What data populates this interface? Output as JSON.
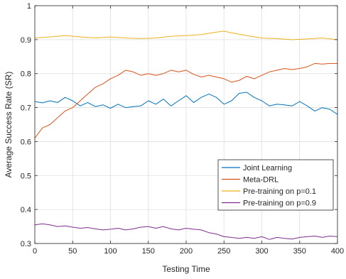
{
  "chart_data": {
    "type": "line",
    "title": "",
    "xlabel": "Testing Time",
    "ylabel": "Average Success Rate (SR)",
    "xlim": [
      0,
      400
    ],
    "ylim": [
      0.3,
      1
    ],
    "x_ticks": [
      "0",
      "50",
      "100",
      "150",
      "200",
      "250",
      "300",
      "350",
      "400"
    ],
    "y_ticks": [
      "0.3",
      "0.4",
      "0.5",
      "0.6",
      "0.7",
      "0.8",
      "0.9",
      "1"
    ],
    "grid": true,
    "legend_position": "lower-right",
    "series": [
      {
        "name": "Joint Learning",
        "color": "#0072BD",
        "x": [
          0,
          10,
          20,
          30,
          40,
          50,
          60,
          70,
          80,
          90,
          100,
          110,
          120,
          130,
          140,
          150,
          160,
          170,
          180,
          190,
          200,
          210,
          220,
          230,
          240,
          250,
          260,
          270,
          280,
          290,
          300,
          310,
          320,
          330,
          340,
          350,
          360,
          370,
          380,
          390,
          400
        ],
        "y": [
          0.718,
          0.714,
          0.72,
          0.715,
          0.73,
          0.72,
          0.705,
          0.715,
          0.703,
          0.708,
          0.698,
          0.71,
          0.7,
          0.703,
          0.705,
          0.72,
          0.71,
          0.725,
          0.705,
          0.72,
          0.735,
          0.715,
          0.73,
          0.74,
          0.73,
          0.71,
          0.72,
          0.742,
          0.745,
          0.73,
          0.72,
          0.705,
          0.71,
          0.708,
          0.705,
          0.718,
          0.705,
          0.69,
          0.7,
          0.695,
          0.68
        ]
      },
      {
        "name": "Meta-DRL",
        "color": "#D95319",
        "x": [
          0,
          10,
          20,
          30,
          40,
          50,
          60,
          70,
          80,
          90,
          100,
          110,
          120,
          130,
          140,
          150,
          160,
          170,
          180,
          190,
          200,
          210,
          220,
          230,
          240,
          250,
          260,
          270,
          280,
          290,
          300,
          310,
          320,
          330,
          340,
          350,
          360,
          370,
          380,
          390,
          400
        ],
        "y": [
          0.61,
          0.64,
          0.65,
          0.67,
          0.69,
          0.7,
          0.72,
          0.74,
          0.76,
          0.77,
          0.785,
          0.795,
          0.81,
          0.805,
          0.795,
          0.8,
          0.795,
          0.8,
          0.81,
          0.805,
          0.81,
          0.798,
          0.79,
          0.795,
          0.79,
          0.785,
          0.775,
          0.78,
          0.792,
          0.785,
          0.795,
          0.805,
          0.81,
          0.815,
          0.812,
          0.815,
          0.82,
          0.83,
          0.828,
          0.83,
          0.83
        ]
      },
      {
        "name": "Pre-training on p=0.1",
        "color": "#EDB120",
        "x": [
          0,
          20,
          40,
          60,
          80,
          100,
          120,
          140,
          160,
          180,
          200,
          220,
          240,
          250,
          260,
          280,
          300,
          320,
          340,
          360,
          380,
          400
        ],
        "y": [
          0.905,
          0.908,
          0.912,
          0.908,
          0.905,
          0.908,
          0.905,
          0.903,
          0.905,
          0.91,
          0.912,
          0.915,
          0.922,
          0.925,
          0.92,
          0.912,
          0.905,
          0.903,
          0.9,
          0.902,
          0.905,
          0.9
        ]
      },
      {
        "name": "Pre-training on p=0.9",
        "color": "#7E2F8E",
        "x": [
          0,
          10,
          20,
          30,
          40,
          50,
          60,
          70,
          80,
          90,
          100,
          110,
          120,
          130,
          140,
          150,
          160,
          170,
          180,
          190,
          200,
          210,
          220,
          230,
          240,
          250,
          260,
          270,
          280,
          290,
          300,
          310,
          320,
          330,
          340,
          350,
          360,
          370,
          380,
          390,
          400
        ],
        "y": [
          0.355,
          0.358,
          0.355,
          0.35,
          0.352,
          0.348,
          0.345,
          0.347,
          0.343,
          0.34,
          0.342,
          0.345,
          0.34,
          0.343,
          0.348,
          0.35,
          0.345,
          0.35,
          0.343,
          0.34,
          0.345,
          0.342,
          0.34,
          0.332,
          0.328,
          0.32,
          0.318,
          0.315,
          0.318,
          0.315,
          0.32,
          0.312,
          0.318,
          0.315,
          0.313,
          0.318,
          0.32,
          0.322,
          0.318,
          0.322,
          0.32
        ]
      }
    ]
  }
}
